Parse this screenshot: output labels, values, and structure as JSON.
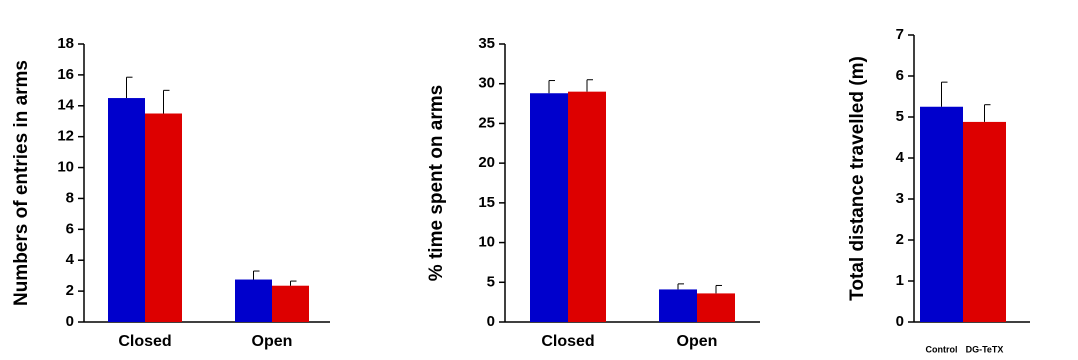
{
  "chart_data": [
    {
      "type": "bar",
      "ylabel": "Numbers of entries in arms",
      "categories": [
        "Closed",
        "Open"
      ],
      "series": [
        {
          "color": "#0000cc",
          "values": [
            14.5,
            2.75
          ],
          "errors": [
            1.35,
            0.55
          ]
        },
        {
          "color": "#dd0000",
          "values": [
            13.5,
            2.35
          ],
          "errors": [
            1.5,
            0.3
          ]
        }
      ],
      "ylim": [
        0,
        18
      ],
      "yticks": [
        0,
        2,
        4,
        6,
        8,
        10,
        12,
        14,
        16,
        18
      ]
    },
    {
      "type": "bar",
      "ylabel": "% time spent on arms",
      "categories": [
        "Closed",
        "Open"
      ],
      "series": [
        {
          "color": "#0000cc",
          "values": [
            28.8,
            4.1
          ],
          "errors": [
            1.6,
            0.7
          ]
        },
        {
          "color": "#dd0000",
          "values": [
            29.0,
            3.6
          ],
          "errors": [
            1.5,
            1.0
          ]
        }
      ],
      "ylim": [
        0,
        35
      ],
      "yticks": [
        0,
        5,
        10,
        15,
        20,
        25,
        30,
        35
      ]
    },
    {
      "type": "bar",
      "ylabel": "Total distance travelled (m)",
      "categories": [
        "Control",
        "DG-TeTX"
      ],
      "values": [
        5.25,
        4.88
      ],
      "errors": [
        0.6,
        0.42
      ],
      "colors": [
        "#0000cc",
        "#dd0000"
      ],
      "ylim": [
        0,
        7
      ],
      "yticks": [
        0,
        1,
        2,
        3,
        4,
        5,
        6,
        7
      ]
    }
  ]
}
